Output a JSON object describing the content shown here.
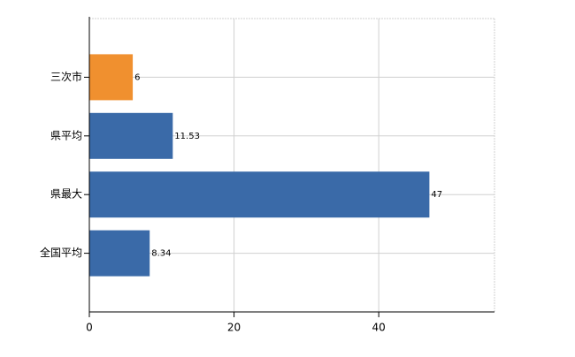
{
  "chart_data": {
    "type": "hbar",
    "categories": [
      "三次市",
      "県平均",
      "県最大",
      "全国平均"
    ],
    "values": [
      6,
      11.53,
      47,
      8.34
    ],
    "colors": [
      "#f0902f",
      "#3a6aa8",
      "#3a6aa8",
      "#3a6aa8"
    ],
    "xlim": [
      0,
      56
    ],
    "xticks": [
      0,
      20,
      40
    ],
    "grid": true
  }
}
